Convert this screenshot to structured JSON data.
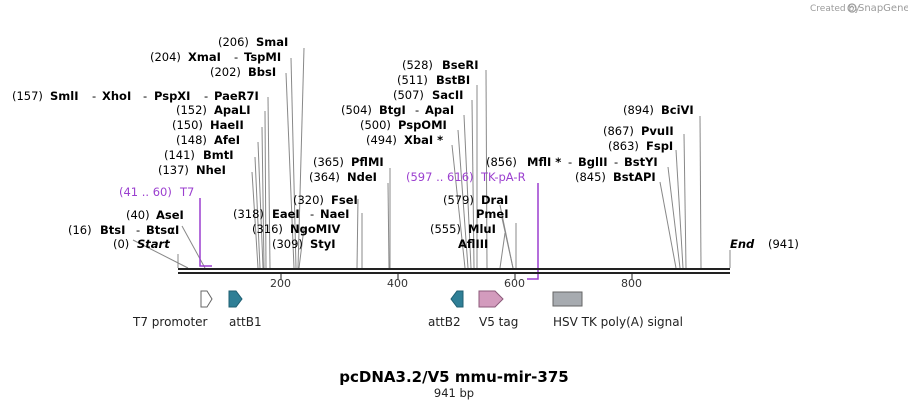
{
  "credit": {
    "created_by": "Created by",
    "brand": "SnapGene"
  },
  "title": "pcDNA3.2/V5 mmu-mir-375",
  "subtitle": "941 bp",
  "length": 941,
  "ticks": [
    "200",
    "400",
    "600",
    "800"
  ],
  "sites_left": [
    {
      "pos": "(206)",
      "name": "SmaI"
    },
    {
      "pos": "(204)",
      "name": "XmaI",
      "sep": "-",
      "name2": "TspMI"
    },
    {
      "pos": "(202)",
      "name": "BbsI"
    },
    {
      "pos": "(157)",
      "name": "SmlI",
      "sep": "-",
      "name2": "XhoI",
      "sep2": "-",
      "name3": "PspXI",
      "sep3": "-",
      "name4": "PaeR7I"
    },
    {
      "pos": "(152)",
      "name": "ApaLI"
    },
    {
      "pos": "(150)",
      "name": "HaeII"
    },
    {
      "pos": "(148)",
      "name": "AfeI"
    },
    {
      "pos": "(141)",
      "name": "BmtI"
    },
    {
      "pos": "(137)",
      "name": "NheI"
    },
    {
      "pos": "(41 .. 60)",
      "name": "T7"
    },
    {
      "pos": "(40)",
      "name": "AseI"
    },
    {
      "pos": "(16)",
      "name": "BtsI",
      "sep": "-",
      "name2": "BtsαI"
    },
    {
      "pos": "(0)",
      "name": "Start"
    }
  ],
  "sites_mid": [
    {
      "pos": "(318)",
      "name": "EaeI",
      "sep": "-",
      "name2": "NaeI"
    },
    {
      "pos": "(316)",
      "name": "NgoMIV"
    },
    {
      "pos": "(309)",
      "name": "StyI"
    },
    {
      "pos": "(320)",
      "name": "FseI"
    },
    {
      "pos": "(365)",
      "name": "PflMI"
    },
    {
      "pos": "(364)",
      "name": "NdeI"
    }
  ],
  "sites_right": [
    {
      "pos": "(528)",
      "name": "BseRI"
    },
    {
      "pos": "(511)",
      "name": "BstBI"
    },
    {
      "pos": "(507)",
      "name": "SacII"
    },
    {
      "pos": "(504)",
      "name": "BtgI",
      "sep": "-",
      "name2": "ApaI"
    },
    {
      "pos": "(500)",
      "name": "PspOMI"
    },
    {
      "pos": "(494)",
      "name": "XbaI *"
    },
    {
      "pos": "(597 .. 616)",
      "name": "TK-pA-R"
    },
    {
      "pos": "(579)",
      "name": "DraI"
    },
    {
      "name": "PmeI"
    },
    {
      "pos": "(555)",
      "name": "MluI"
    },
    {
      "name": "AflIII"
    }
  ],
  "sites_far": [
    {
      "pos": "(894)",
      "name": "BciVI"
    },
    {
      "pos": "(867)",
      "name": "PvuII"
    },
    {
      "pos": "(863)",
      "name": "FspI"
    },
    {
      "pos": "(856)",
      "name": "MflI *",
      "sep": "-",
      "name2": "BglII",
      "sep2": "-",
      "name3": "BstYI"
    },
    {
      "pos": "(845)",
      "name": "BstAPI"
    },
    {
      "name": "End",
      "pos": "(941)"
    }
  ],
  "features": [
    {
      "label": "T7 promoter",
      "color": "#ffffff"
    },
    {
      "label": "attB1",
      "color": "#2f7f96"
    },
    {
      "label": "attB2",
      "color": "#2f7f96"
    },
    {
      "label": "V5 tag",
      "color": "#d39bbd"
    },
    {
      "label": "HSV TK poly(A) signal",
      "color": "#a7abb0"
    }
  ],
  "colors": {
    "primer": "#9b3fcf",
    "backbone": "#222222"
  }
}
